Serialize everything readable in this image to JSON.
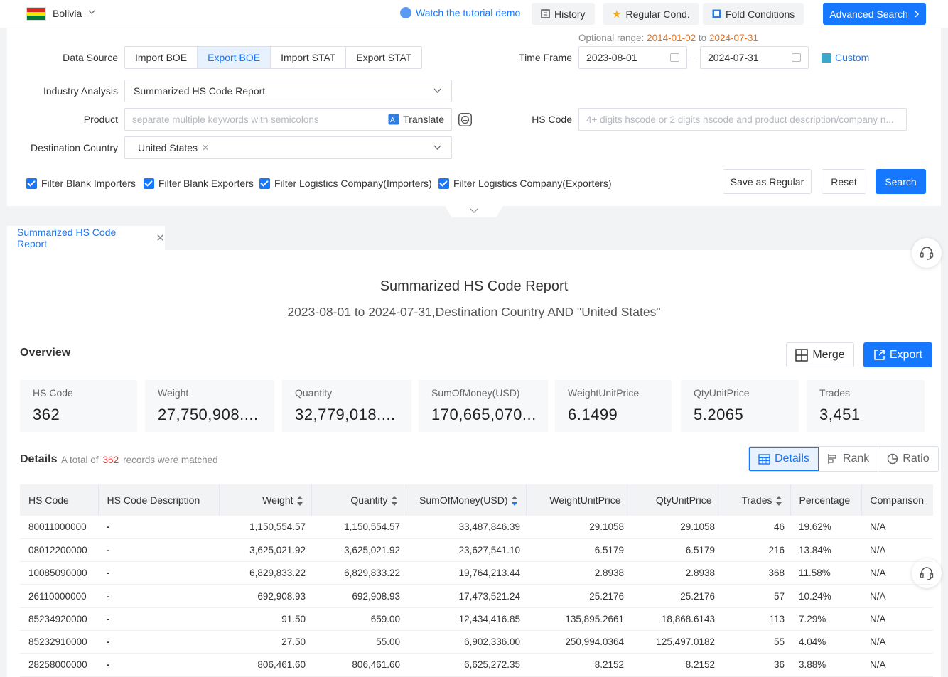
{
  "topbar": {
    "country": "Bolivia",
    "tutorial": "Watch the tutorial demo",
    "history": "History",
    "regular_cond": "Regular Cond.",
    "fold_conditions": "Fold Conditions",
    "advanced_search": "Advanced Search"
  },
  "form": {
    "data_source_label": "Data Source",
    "data_sources": [
      "Import BOE",
      "Export BOE",
      "Import STAT",
      "Export STAT"
    ],
    "data_source_selected": "Export BOE",
    "optional_range_label": "Optional range:",
    "optional_range_start": "2014-01-02",
    "optional_range_to": "to",
    "optional_range_end": "2024-07-31",
    "time_frame_label": "Time Frame",
    "time_start": "2023-08-01",
    "time_end": "2024-07-31",
    "custom": "Custom",
    "industry_label": "Industry Analysis",
    "industry_value": "Summarized HS Code Report",
    "product_label": "Product",
    "product_placeholder": "separate multiple keywords with semicolons",
    "translate": "Translate",
    "hscode_label": "HS Code",
    "hscode_placeholder": "4+ digits hscode or 2 digits hscode and product description/company n...",
    "destination_label": "Destination Country",
    "destination_tag": "United States",
    "filters": [
      "Filter Blank Importers",
      "Filter Blank Exporters",
      "Filter Logistics Company(Importers)",
      "Filter Logistics Company(Exporters)"
    ],
    "save_regular": "Save as Regular",
    "reset": "Reset",
    "search": "Search"
  },
  "report": {
    "tab": "Summarized HS Code Report",
    "title": "Summarized HS Code Report",
    "subtitle": "2023-08-01 to 2024-07-31,Destination Country AND \"United States\"",
    "overview": "Overview",
    "merge": "Merge",
    "export": "Export",
    "cards": [
      {
        "label": "HS Code",
        "value": "362"
      },
      {
        "label": "Weight",
        "value": "27,750,908...."
      },
      {
        "label": "Quantity",
        "value": "32,779,018...."
      },
      {
        "label": "SumOfMoney(USD)",
        "value": "170,665,070..."
      },
      {
        "label": "WeightUnitPrice",
        "value": "6.1499"
      },
      {
        "label": "QtyUnitPrice",
        "value": "5.2065"
      },
      {
        "label": "Trades",
        "value": "3,451"
      }
    ],
    "details": "Details",
    "total_prefix": "A total of",
    "total_count": "362",
    "total_suffix": "records were matched",
    "view_tabs": [
      "Details",
      "Rank",
      "Ratio"
    ],
    "columns": [
      "HS Code",
      "HS Code Description",
      "Weight",
      "Quantity",
      "SumOfMoney(USD)",
      "WeightUnitPrice",
      "QtyUnitPrice",
      "Trades",
      "Percentage",
      "Comparison"
    ],
    "rows": [
      [
        "80011000000",
        "-",
        "1,150,554.57",
        "1,150,554.57",
        "33,487,846.39",
        "29.1058",
        "29.1058",
        "46",
        "19.62%",
        "N/A"
      ],
      [
        "08012200000",
        "-",
        "3,625,021.92",
        "3,625,021.92",
        "23,627,541.10",
        "6.5179",
        "6.5179",
        "216",
        "13.84%",
        "N/A"
      ],
      [
        "10085090000",
        "-",
        "6,829,833.22",
        "6,829,833.22",
        "19,764,213.44",
        "2.8938",
        "2.8938",
        "368",
        "11.58%",
        "N/A"
      ],
      [
        "26110000000",
        "-",
        "692,908.93",
        "692,908.93",
        "17,473,521.24",
        "25.2176",
        "25.2176",
        "57",
        "10.24%",
        "N/A"
      ],
      [
        "85234920000",
        "-",
        "91.50",
        "659.00",
        "12,434,416.85",
        "135,895.2661",
        "18,868.6143",
        "113",
        "7.29%",
        "N/A"
      ],
      [
        "85232910000",
        "-",
        "27.50",
        "55.00",
        "6,902,336.00",
        "250,994.0364",
        "125,497.0182",
        "55",
        "4.04%",
        "N/A"
      ],
      [
        "28258000000",
        "-",
        "806,461.60",
        "806,461.60",
        "6,625,272.35",
        "8.2152",
        "8.2152",
        "36",
        "3.88%",
        "N/A"
      ]
    ]
  }
}
